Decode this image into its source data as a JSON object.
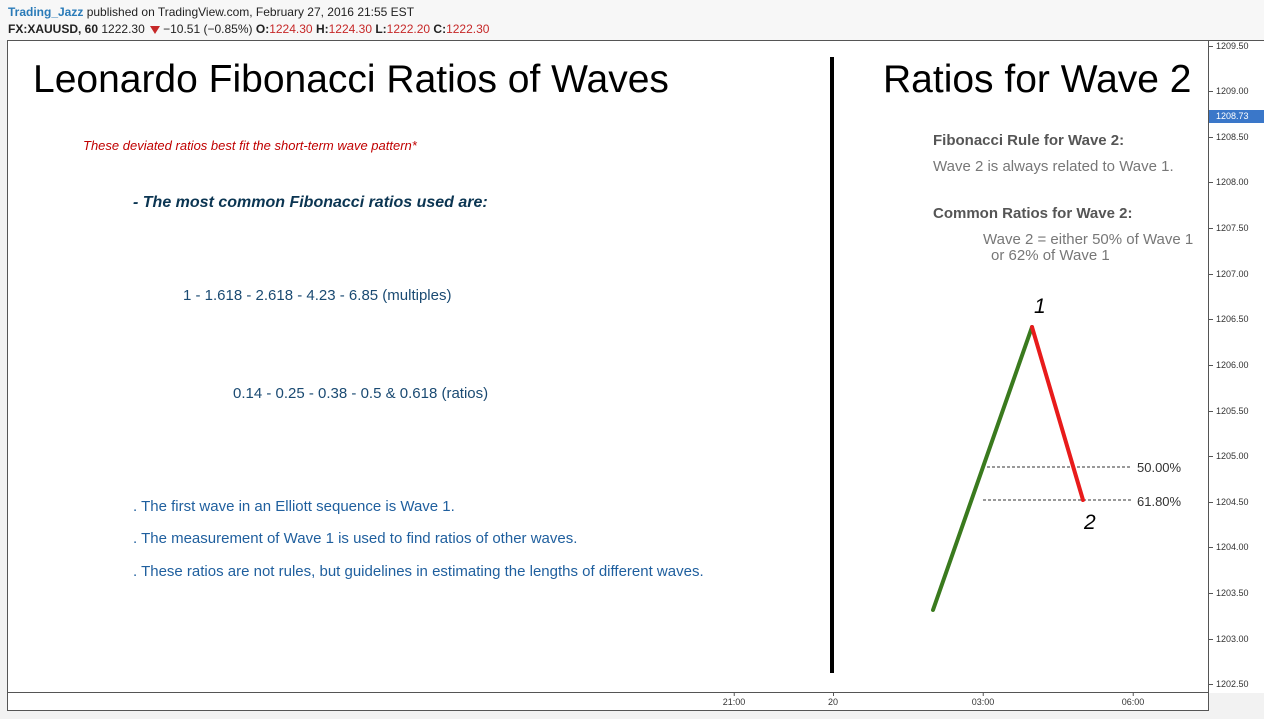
{
  "header": {
    "author": "Trading_Jazz",
    "published_text": "published on TradingView.com, February 27, 2016 21:55 EST",
    "symbol": "FX:XAUUSD, 60",
    "last_price": "1222.30",
    "change": "−10.51 (−0.85%)",
    "open_label": "O:",
    "open_value": "1224.30",
    "high_label": "H:",
    "high_value": "1224.30",
    "low_label": "L:",
    "low_value": "1222.20",
    "close_label": "C:",
    "close_value": "1222.30"
  },
  "left_panel": {
    "title": "Leonardo Fibonacci Ratios of Waves",
    "note": "These deviated ratios best fit the short-term wave pattern*",
    "heading": "- The most common Fibonacci ratios used are:",
    "multiples": "1 - 1.618 - 2.618 - 4.23 - 6.85 (multiples)",
    "ratios": "0.14 - 0.25 - 0.38 - 0.5 & 0.618 (ratios)",
    "bullets": [
      ". The first wave in an Elliott sequence is Wave 1.",
      ". The measurement of Wave 1 is used to find ratios of other waves.",
      ". These ratios are not rules, but guidelines in estimating the lengths of different waves."
    ]
  },
  "right_panel": {
    "title": "Ratios for Wave 2",
    "rule_heading": "Fibonacci Rule for Wave 2:",
    "rule_text": "Wave 2 is always related to Wave 1.",
    "common_heading": "Common Ratios for Wave 2:",
    "common_line1": "Wave 2 = either 50% of Wave 1",
    "common_line2": "or 62% of Wave 1",
    "wave1_label": "1",
    "wave2_label": "2",
    "fib_50": "50.00%",
    "fib_618": "61.80%",
    "colors": {
      "wave1": "#3a7a1e",
      "wave2": "#e81b1b"
    }
  },
  "price_axis": {
    "ticks": [
      "1209.50",
      "1209.00",
      "1208.50",
      "1208.00",
      "1207.50",
      "1207.00",
      "1206.50",
      "1206.00",
      "1205.50",
      "1205.00",
      "1204.50",
      "1204.00",
      "1203.50",
      "1203.00",
      "1202.50"
    ],
    "current_price": "1208.73"
  },
  "time_axis": {
    "ticks": [
      "21:00",
      "20",
      "03:00",
      "06:00"
    ]
  }
}
